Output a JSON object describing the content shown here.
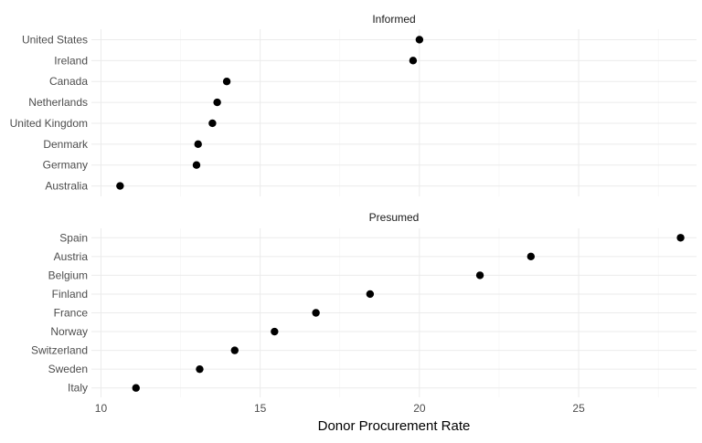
{
  "chart_data": {
    "type": "scatter",
    "xlabel": "Donor Procurement Rate",
    "ylabel": "",
    "xlim": [
      9.7,
      28.7
    ],
    "x_ticks": [
      10,
      15,
      20,
      25
    ],
    "x_minor_ticks": [
      12.5,
      17.5,
      22.5,
      27.5
    ],
    "grid": true,
    "legend": "none",
    "facets": [
      {
        "label": "Informed",
        "categories": [
          "United States",
          "Ireland",
          "Canada",
          "Netherlands",
          "United Kingdom",
          "Denmark",
          "Germany",
          "Australia"
        ],
        "values": [
          20.0,
          19.8,
          13.95,
          13.65,
          13.5,
          13.05,
          13.0,
          10.6
        ]
      },
      {
        "label": "Presumed",
        "categories": [
          "Spain",
          "Austria",
          "Belgium",
          "Finland",
          "France",
          "Norway",
          "Switzerland",
          "Sweden",
          "Italy"
        ],
        "values": [
          28.2,
          23.5,
          21.9,
          18.45,
          16.75,
          15.45,
          14.2,
          13.1,
          11.1
        ]
      }
    ]
  }
}
